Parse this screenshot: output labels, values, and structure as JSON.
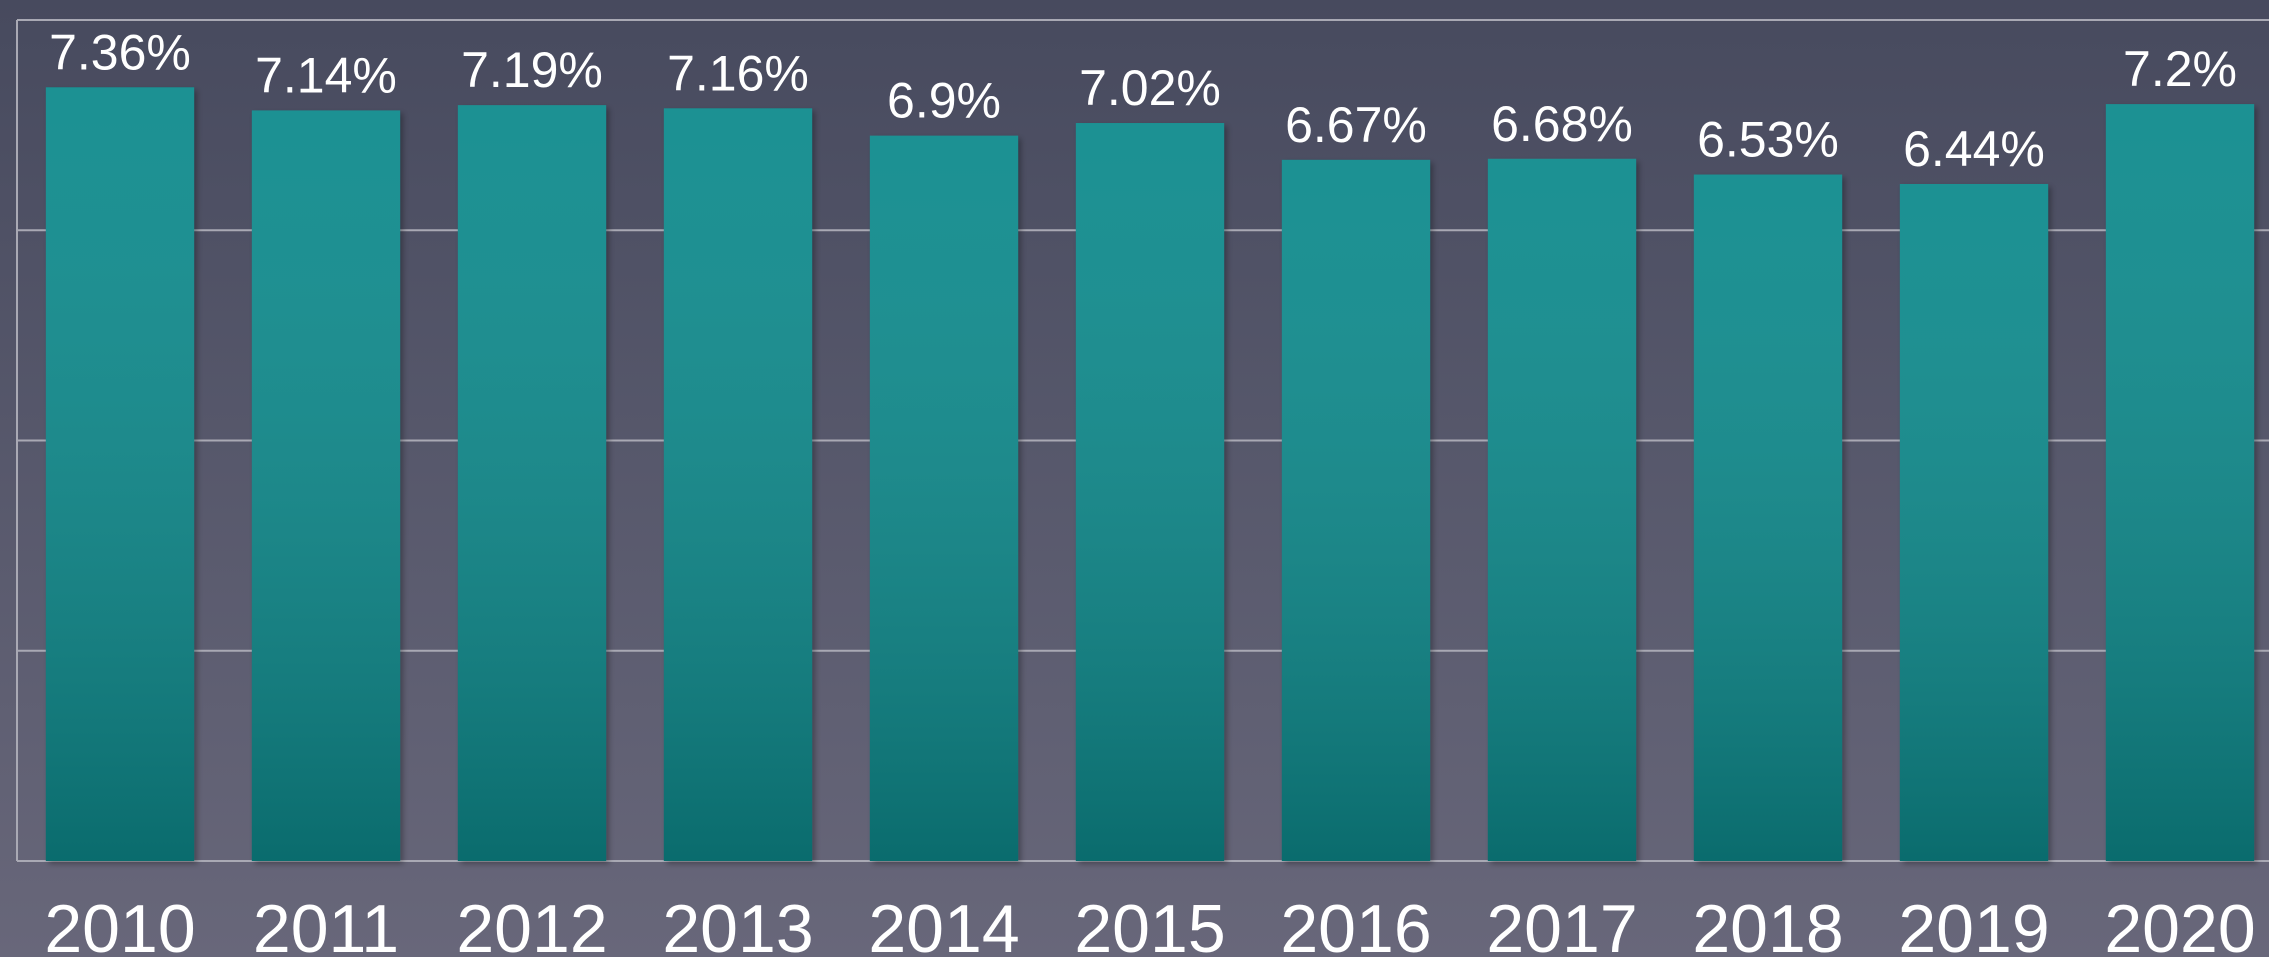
{
  "chart_data": {
    "type": "bar",
    "categories": [
      "2010",
      "2011",
      "2012",
      "2013",
      "2014",
      "2015",
      "2016",
      "2017",
      "2018",
      "2019",
      "2020"
    ],
    "values": [
      7.36,
      7.14,
      7.19,
      7.16,
      6.9,
      7.02,
      6.67,
      6.68,
      6.53,
      6.44,
      7.2
    ],
    "value_labels": [
      "7.36%",
      "7.14%",
      "7.19%",
      "7.16%",
      "6.9%",
      "7.02%",
      "6.67%",
      "6.68%",
      "6.53%",
      "6.44%",
      "7.2%"
    ],
    "color": "#0f8a8c",
    "ylim": [
      0,
      8
    ],
    "yticks": [
      0,
      2,
      4,
      6,
      8
    ],
    "grid": true
  }
}
